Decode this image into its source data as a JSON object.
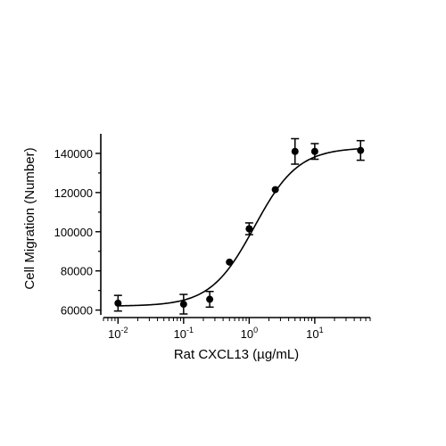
{
  "chart_data": {
    "type": "scatter",
    "xlabel": "Rat CXCL13 (µg/mL)",
    "ylabel": "Cell Migration (Number)",
    "xscale": "log",
    "xlim": [
      0.006,
      70
    ],
    "ylim": [
      58000,
      150000
    ],
    "x_ticks": [
      {
        "value": 0.01,
        "base": "10",
        "exp": "-2"
      },
      {
        "value": 0.1,
        "base": "10",
        "exp": "-1"
      },
      {
        "value": 1,
        "base": "10",
        "exp": "0"
      },
      {
        "value": 10,
        "base": "10",
        "exp": "1"
      }
    ],
    "y_ticks": [
      {
        "value": 60000,
        "label": "60000"
      },
      {
        "value": 80000,
        "label": "80000"
      },
      {
        "value": 100000,
        "label": "100000"
      },
      {
        "value": 120000,
        "label": "120000"
      },
      {
        "value": 140000,
        "label": "140000"
      }
    ],
    "points": [
      {
        "x": 0.01,
        "y": 63500,
        "err": 4000
      },
      {
        "x": 0.1,
        "y": 63000,
        "err": 5000
      },
      {
        "x": 0.25,
        "y": 65500,
        "err": 4000
      },
      {
        "x": 0.5,
        "y": 84500,
        "err": 0
      },
      {
        "x": 1,
        "y": 101500,
        "err": 3000
      },
      {
        "x": 2.5,
        "y": 121500,
        "err": 0
      },
      {
        "x": 5,
        "y": 141000,
        "err": 6500
      },
      {
        "x": 10,
        "y": 141000,
        "err": 4000
      },
      {
        "x": 50,
        "y": 141500,
        "err": 5000
      }
    ],
    "fit_curve": {
      "model": "4PL",
      "bottom": 62000,
      "top": 143000,
      "ec50": 1.2,
      "hill": 1.3
    },
    "grid": false,
    "legend": "none"
  }
}
